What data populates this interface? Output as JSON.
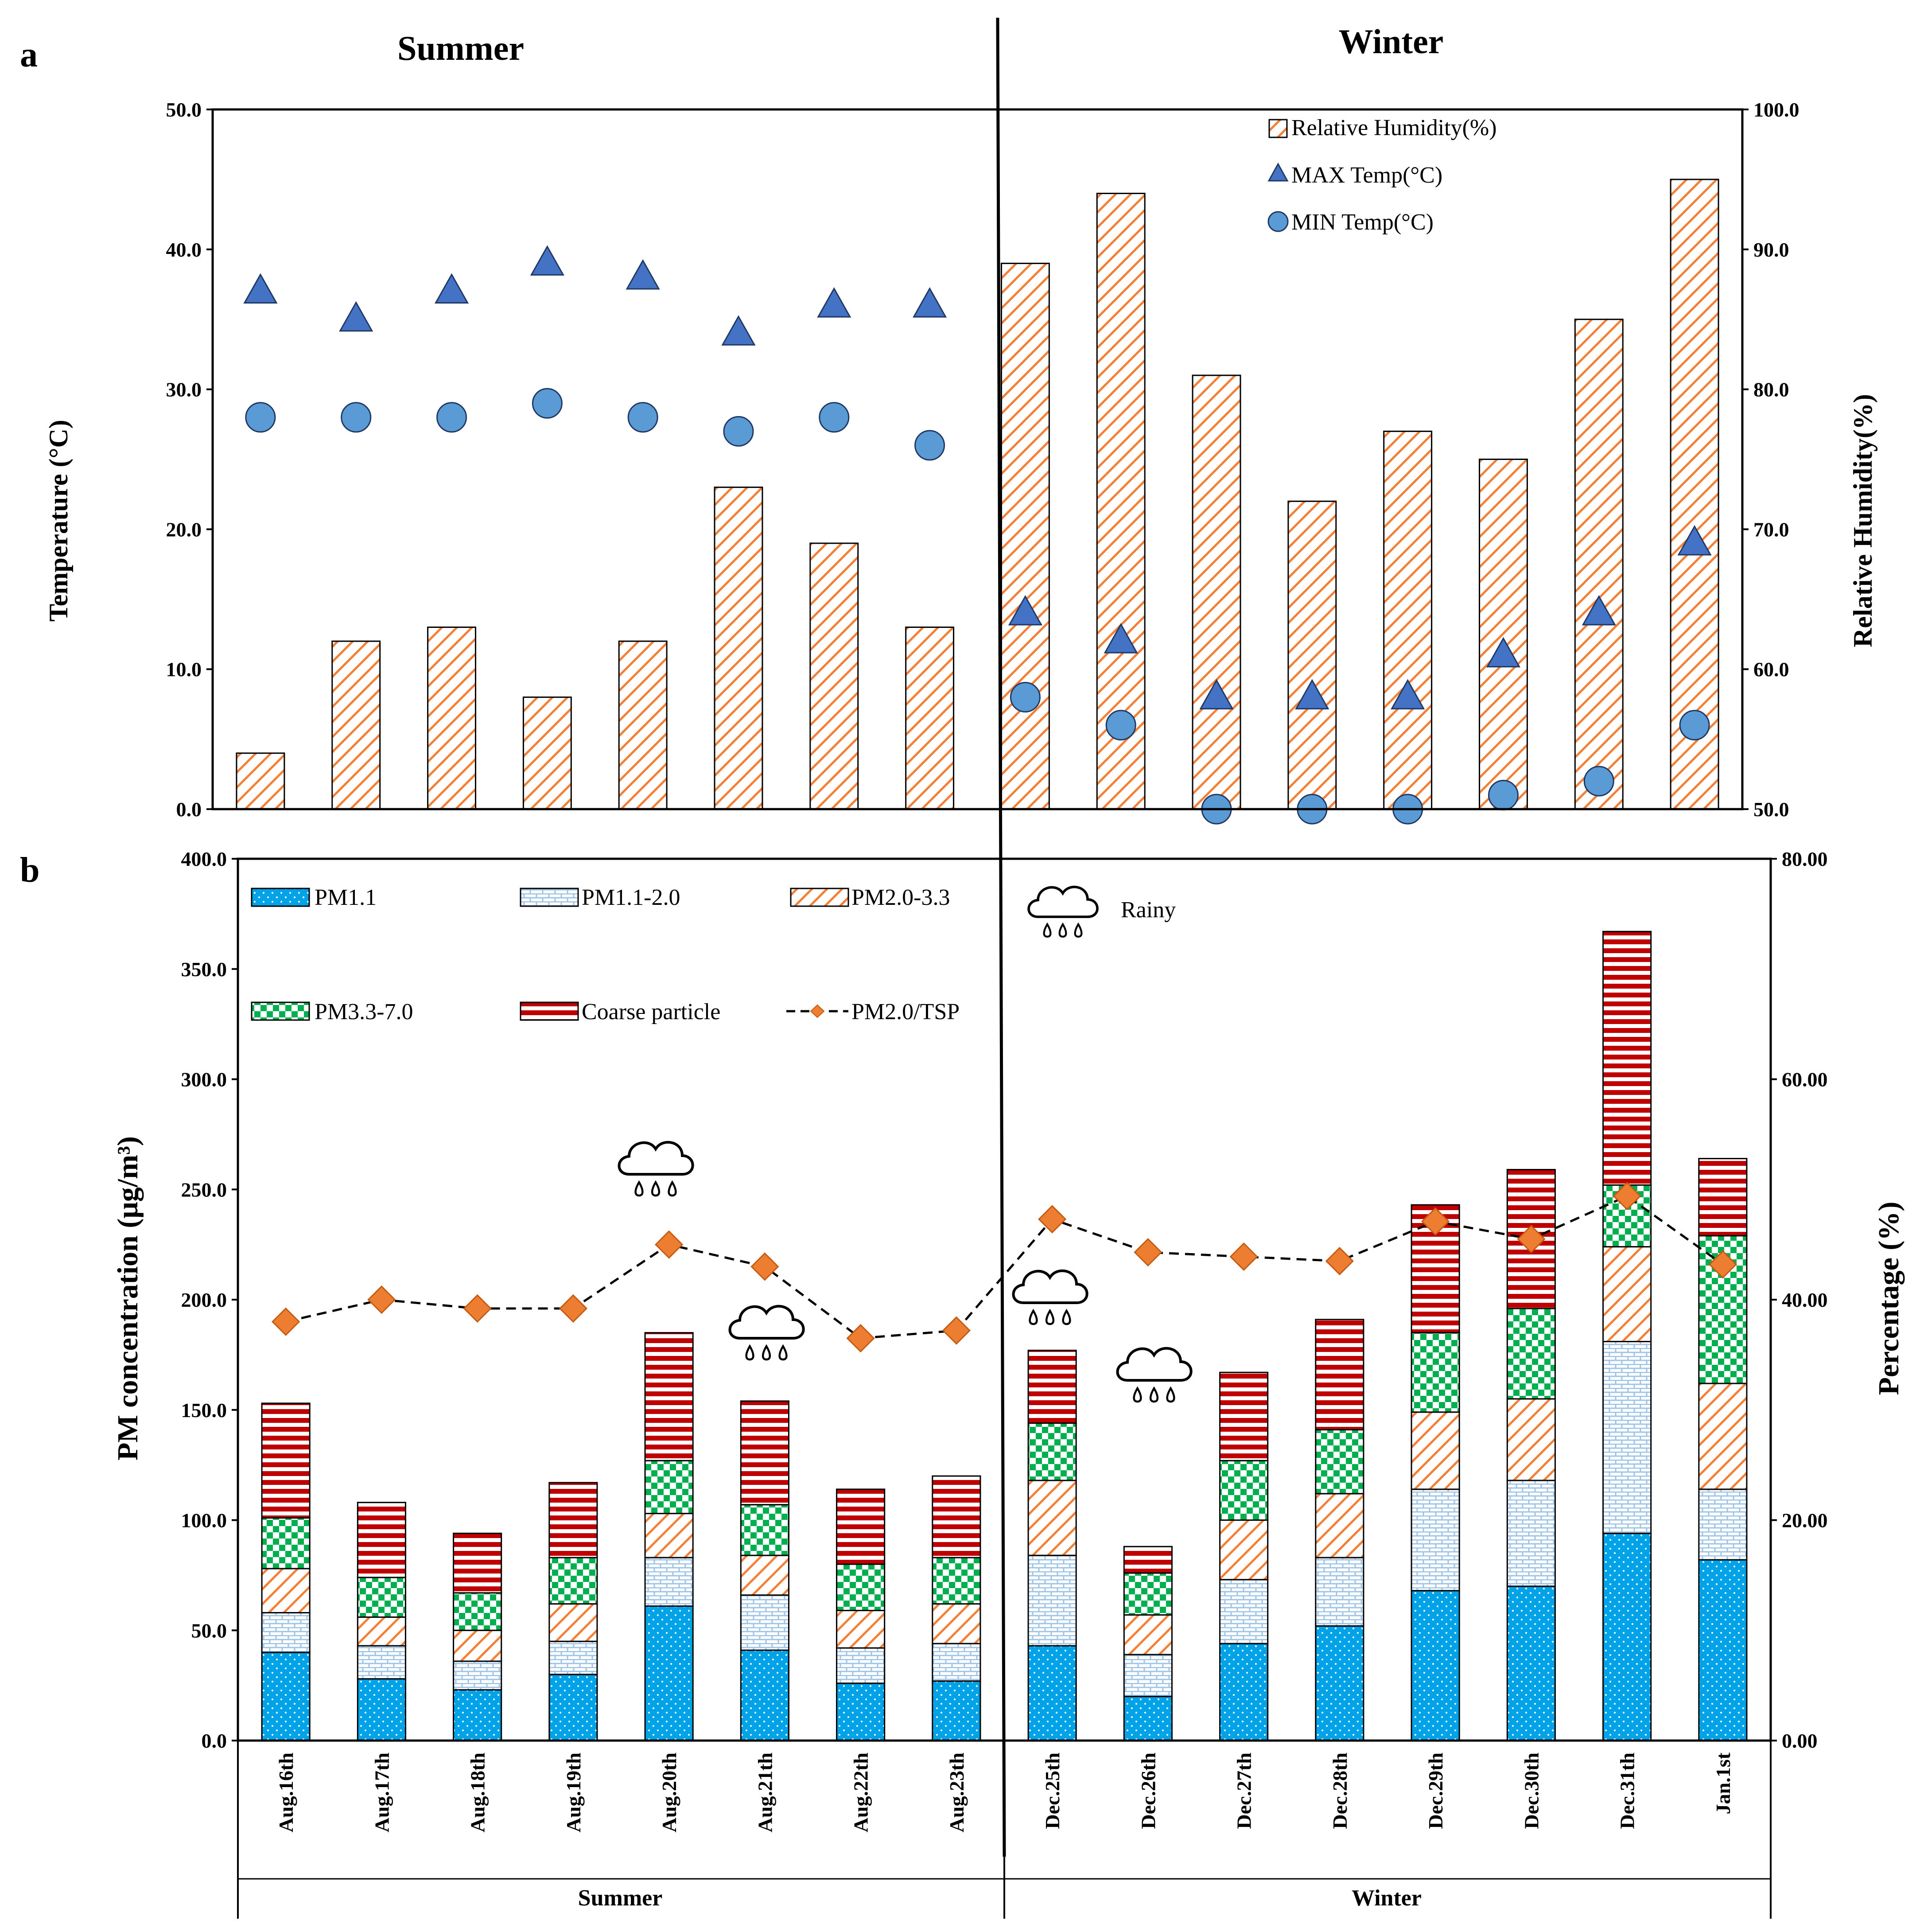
{
  "panel_labels": {
    "a": "a",
    "b": "b"
  },
  "season_headers": {
    "summer": "Summer",
    "winter": "Winter"
  },
  "colors": {
    "rh": "#F47F35",
    "max_temp": "#4472C4",
    "min_temp": "#5B9BD5",
    "pm11": "#00A2E8",
    "pm11_20": "#BDD7EE",
    "pm20_33": "#F47F35",
    "pm33_70": "#00B050",
    "coarse": "#C00000",
    "ratio": "#ED7D31"
  },
  "icons": {
    "weather": "rain-cloud-icon"
  },
  "rainy_label": "Rainy",
  "chart_data": [
    {
      "id": "panel_a",
      "type": "bar",
      "categories": [
        "Aug.16th",
        "Aug.17th",
        "Aug.18th",
        "Aug.19th",
        "Aug.20th",
        "Aug.21th",
        "Aug.22th",
        "Aug.23th",
        "Dec.25th",
        "Dec.26th",
        "Dec.27th",
        "Dec.28th",
        "Dec.29th",
        "Dec.30th",
        "Dec.31th",
        "Jan.1st"
      ],
      "ylabel": "Temperature (°C)",
      "y2label": "Relative Humidity(%)",
      "ylim": [
        0,
        50
      ],
      "y2lim": [
        50,
        100
      ],
      "yticks": [
        "0.0",
        "10.0",
        "20.0",
        "30.0",
        "40.0",
        "50.0"
      ],
      "y2ticks": [
        "50.0",
        "60.0",
        "70.0",
        "80.0",
        "90.0",
        "100.0"
      ],
      "series": [
        {
          "name": "Relative Humidity(%)",
          "kind": "bar",
          "axis": "right",
          "values": [
            54,
            62,
            63,
            58,
            62,
            73,
            69,
            63,
            89,
            94,
            81,
            72,
            77,
            75,
            85,
            95
          ]
        },
        {
          "name": "MAX Temp(°C)",
          "kind": "triangle",
          "axis": "left",
          "values": [
            37,
            35,
            37,
            39,
            38,
            34,
            36,
            36,
            14,
            12,
            8,
            8,
            8,
            11,
            14,
            19
          ]
        },
        {
          "name": "MIN Temp(°C)",
          "kind": "circle",
          "axis": "left",
          "values": [
            28,
            28,
            28,
            29,
            28,
            27,
            28,
            26,
            8,
            6,
            0,
            0,
            0,
            1,
            2,
            6
          ]
        }
      ]
    },
    {
      "id": "panel_b",
      "type": "bar",
      "stacked": true,
      "categories": [
        "Aug.16th",
        "Aug.17th",
        "Aug.18th",
        "Aug.19th",
        "Aug.20th",
        "Aug.21th",
        "Aug.22th",
        "Aug.23th",
        "Dec.25th",
        "Dec.26th",
        "Dec.27th",
        "Dec.28th",
        "Dec.29th",
        "Dec.30th",
        "Dec.31th",
        "Jan.1st"
      ],
      "groups": [
        {
          "label": "Summer",
          "count": 8
        },
        {
          "label": "Winter",
          "count": 8
        }
      ],
      "ylabel": "PM concentration (μg/m³)",
      "y2label": "Percentage (%)",
      "ylim": [
        0,
        400
      ],
      "y2lim": [
        0,
        80
      ],
      "yticks": [
        "0.0",
        "50.0",
        "100.0",
        "150.0",
        "200.0",
        "250.0",
        "300.0",
        "350.0",
        "400.0"
      ],
      "y2ticks": [
        "0.00",
        "20.00",
        "40.00",
        "60.00",
        "80.00"
      ],
      "series": [
        {
          "name": "PM1.1",
          "kind": "bar",
          "values": [
            40,
            28,
            23,
            30,
            61,
            41,
            26,
            27,
            43,
            20,
            44,
            52,
            68,
            70,
            94,
            82
          ]
        },
        {
          "name": "PM1.1-2.0",
          "kind": "bar",
          "values": [
            18,
            15,
            13,
            15,
            22,
            25,
            16,
            17,
            41,
            19,
            29,
            31,
            46,
            48,
            87,
            32
          ]
        },
        {
          "name": "PM2.0-3.3",
          "kind": "bar",
          "values": [
            20,
            13,
            14,
            17,
            20,
            18,
            17,
            18,
            34,
            18,
            27,
            29,
            35,
            37,
            43,
            48
          ]
        },
        {
          "name": "PM3.3-7.0",
          "kind": "bar",
          "values": [
            23,
            18,
            17,
            21,
            24,
            23,
            21,
            21,
            26,
            19,
            27,
            29,
            36,
            41,
            28,
            67
          ]
        },
        {
          "name": "Coarse particle",
          "kind": "bar",
          "values": [
            52,
            34,
            27,
            34,
            58,
            47,
            34,
            37,
            33,
            12,
            40,
            50,
            58,
            63,
            115,
            35
          ]
        },
        {
          "name": "PM2.0/TSP",
          "kind": "line",
          "axis": "right",
          "values": [
            38.0,
            40.0,
            39.2,
            39.2,
            45.0,
            43.0,
            36.5,
            37.2,
            47.3,
            44.3,
            43.9,
            43.5,
            47.1,
            45.5,
            49.4,
            43.2
          ]
        }
      ],
      "rainy_days": [
        "Aug.20th",
        "Aug.21th",
        "Dec.25th",
        "Dec.26th"
      ]
    }
  ]
}
